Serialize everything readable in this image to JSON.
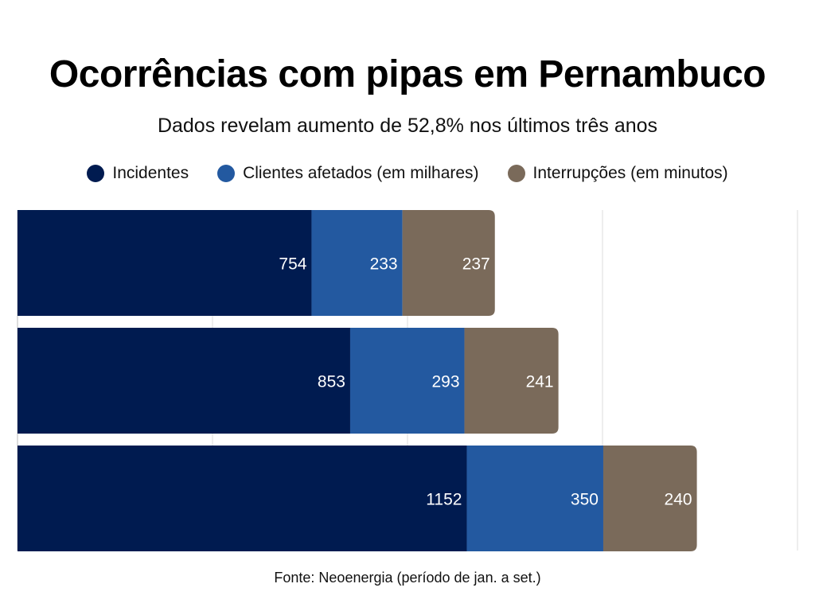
{
  "chart_data": {
    "type": "bar",
    "orientation": "horizontal",
    "stacked": true,
    "title": "Ocorrências com pipas em Pernambuco",
    "subtitle": "Dados revelam aumento de 52,8% nos últimos três anos",
    "categories": [
      "",
      "",
      ""
    ],
    "series": [
      {
        "name": "Incidentes",
        "color": "#001b50",
        "values": [
          754,
          853,
          1152
        ]
      },
      {
        "name": "Clientes afetados (em milhares)",
        "color": "#2359a0",
        "values": [
          233,
          293,
          350
        ]
      },
      {
        "name": "Interrupções (em minutos)",
        "color": "#7a6a5a",
        "values": [
          237,
          241,
          240
        ]
      }
    ],
    "xlim": [
      0,
      2000
    ],
    "gridlines": [
      500,
      1000,
      1500,
      2000
    ],
    "grid": true,
    "legend_position": "top-center",
    "source": "Fonte: Neoenergia (período de jan. a set.)"
  }
}
